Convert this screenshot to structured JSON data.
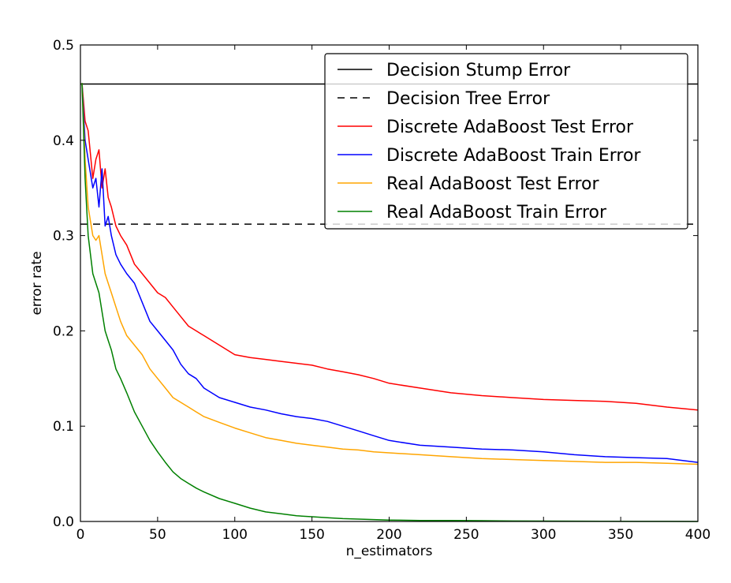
{
  "chart_data": {
    "type": "line",
    "title": "",
    "xlabel": "n_estimators",
    "ylabel": "error rate",
    "xlim": [
      0,
      400
    ],
    "ylim": [
      0,
      0.5
    ],
    "xticks": [
      "0",
      "50",
      "100",
      "150",
      "200",
      "250",
      "300",
      "350",
      "400"
    ],
    "yticks": [
      "0.0",
      "0.1",
      "0.2",
      "0.3",
      "0.4",
      "0.5"
    ],
    "grid": false,
    "legend": "top-right",
    "series": [
      {
        "name": "Decision Stump Error",
        "color": "#000000",
        "dash": "solid",
        "x": [
          0,
          400
        ],
        "y": [
          0.459,
          0.459
        ]
      },
      {
        "name": "Decision Tree Error",
        "color": "#000000",
        "dash": "dashed",
        "x": [
          0,
          400
        ],
        "y": [
          0.312,
          0.312
        ]
      },
      {
        "name": "Discrete AdaBoost Test Error",
        "color": "#ff0000",
        "dash": "solid",
        "x": [
          1,
          3,
          5,
          8,
          10,
          12,
          14,
          16,
          18,
          20,
          23,
          26,
          30,
          35,
          40,
          45,
          50,
          55,
          60,
          65,
          70,
          75,
          80,
          90,
          100,
          110,
          120,
          130,
          140,
          150,
          160,
          170,
          180,
          190,
          200,
          220,
          240,
          260,
          280,
          300,
          320,
          340,
          360,
          380,
          400
        ],
        "y": [
          0.46,
          0.42,
          0.41,
          0.36,
          0.38,
          0.39,
          0.35,
          0.37,
          0.34,
          0.33,
          0.31,
          0.3,
          0.29,
          0.27,
          0.26,
          0.25,
          0.24,
          0.235,
          0.225,
          0.215,
          0.205,
          0.2,
          0.195,
          0.185,
          0.175,
          0.172,
          0.17,
          0.168,
          0.166,
          0.164,
          0.16,
          0.157,
          0.154,
          0.15,
          0.145,
          0.14,
          0.135,
          0.132,
          0.13,
          0.128,
          0.127,
          0.126,
          0.124,
          0.12,
          0.117
        ]
      },
      {
        "name": "Discrete AdaBoost Train Error",
        "color": "#0000ff",
        "dash": "solid",
        "x": [
          1,
          3,
          5,
          8,
          10,
          12,
          14,
          16,
          18,
          20,
          23,
          26,
          30,
          35,
          40,
          45,
          50,
          55,
          60,
          65,
          70,
          75,
          80,
          90,
          100,
          110,
          120,
          130,
          140,
          150,
          160,
          170,
          180,
          190,
          200,
          220,
          240,
          260,
          280,
          300,
          320,
          340,
          360,
          380,
          400
        ],
        "y": [
          0.46,
          0.4,
          0.38,
          0.35,
          0.36,
          0.33,
          0.37,
          0.31,
          0.32,
          0.3,
          0.28,
          0.27,
          0.26,
          0.25,
          0.23,
          0.21,
          0.2,
          0.19,
          0.18,
          0.165,
          0.155,
          0.15,
          0.14,
          0.13,
          0.125,
          0.12,
          0.117,
          0.113,
          0.11,
          0.108,
          0.105,
          0.1,
          0.095,
          0.09,
          0.085,
          0.08,
          0.078,
          0.076,
          0.075,
          0.073,
          0.07,
          0.068,
          0.067,
          0.066,
          0.062
        ]
      },
      {
        "name": "Real AdaBoost Test Error",
        "color": "#ffa500",
        "dash": "solid",
        "x": [
          1,
          3,
          5,
          8,
          10,
          12,
          14,
          16,
          18,
          20,
          23,
          26,
          30,
          35,
          40,
          45,
          50,
          55,
          60,
          65,
          70,
          75,
          80,
          90,
          100,
          110,
          120,
          130,
          140,
          150,
          160,
          170,
          180,
          190,
          200,
          220,
          240,
          260,
          280,
          300,
          320,
          340,
          360,
          380,
          400
        ],
        "y": [
          0.46,
          0.38,
          0.33,
          0.3,
          0.295,
          0.3,
          0.28,
          0.26,
          0.25,
          0.24,
          0.225,
          0.21,
          0.195,
          0.185,
          0.175,
          0.16,
          0.15,
          0.14,
          0.13,
          0.125,
          0.12,
          0.115,
          0.11,
          0.104,
          0.098,
          0.093,
          0.088,
          0.085,
          0.082,
          0.08,
          0.078,
          0.076,
          0.075,
          0.073,
          0.072,
          0.07,
          0.068,
          0.066,
          0.065,
          0.064,
          0.063,
          0.062,
          0.062,
          0.061,
          0.06
        ]
      },
      {
        "name": "Real AdaBoost Train Error",
        "color": "#008000",
        "dash": "solid",
        "x": [
          1,
          3,
          5,
          8,
          10,
          12,
          14,
          16,
          18,
          20,
          23,
          26,
          30,
          35,
          40,
          45,
          50,
          55,
          60,
          65,
          70,
          75,
          80,
          90,
          100,
          110,
          120,
          130,
          140,
          150,
          160,
          170,
          180,
          190,
          200,
          220,
          240,
          260,
          280,
          300,
          320,
          340,
          360,
          380,
          400
        ],
        "y": [
          0.46,
          0.36,
          0.3,
          0.26,
          0.25,
          0.24,
          0.22,
          0.2,
          0.19,
          0.18,
          0.16,
          0.15,
          0.135,
          0.115,
          0.1,
          0.085,
          0.073,
          0.062,
          0.052,
          0.045,
          0.04,
          0.035,
          0.031,
          0.024,
          0.019,
          0.014,
          0.01,
          0.008,
          0.006,
          0.005,
          0.004,
          0.003,
          0.0025,
          0.002,
          0.0015,
          0.001,
          0.001,
          0.0008,
          0.0005,
          0.0004,
          0.0003,
          0.0002,
          0.0001,
          0.0001,
          0
        ]
      }
    ]
  }
}
